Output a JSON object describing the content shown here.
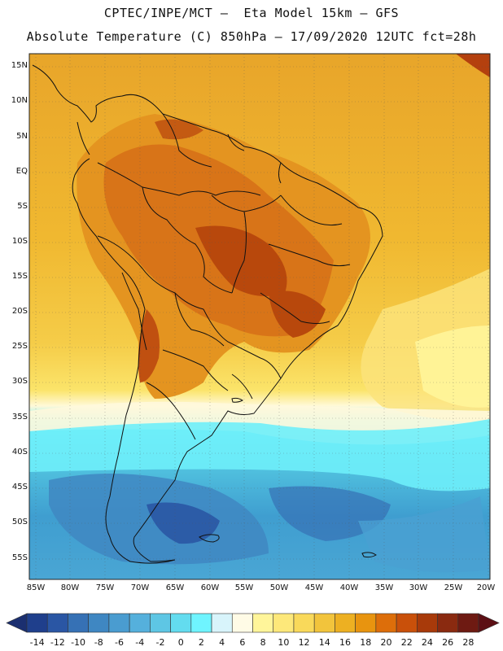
{
  "title_line1": "CPTEC/INPE/MCT –  Eta Model 15km – GFS",
  "title_line2": "Absolute Temperature (C) 850hPa – 17/09/2020 12UTC fct=28h",
  "lat_labels": [
    "15N",
    "10N",
    "5N",
    "EQ",
    "5S",
    "10S",
    "15S",
    "20S",
    "25S",
    "30S",
    "35S",
    "40S",
    "45S",
    "50S",
    "55S"
  ],
  "lon_labels": [
    "85W",
    "80W",
    "75W",
    "70W",
    "65W",
    "60W",
    "55W",
    "50W",
    "45W",
    "40W",
    "35W",
    "30W",
    "25W",
    "20W"
  ],
  "colorbar": {
    "labels": [
      "-14",
      "-12",
      "-10",
      "-8",
      "-6",
      "-4",
      "-2",
      "0",
      "2",
      "4",
      "6",
      "8",
      "10",
      "12",
      "14",
      "16",
      "18",
      "20",
      "22",
      "24",
      "26",
      "28"
    ],
    "colors": [
      "#1f3f8c",
      "#2a56a4",
      "#3671b5",
      "#3f87c2",
      "#4a9cd0",
      "#55b0dc",
      "#5ec6e4",
      "#63dcef",
      "#6ff4ff",
      "#d8f4fb",
      "#fffbe6",
      "#fff59a",
      "#fde87a",
      "#f9d95a",
      "#f2c43c",
      "#edb022",
      "#e8940f",
      "#dd6e0a",
      "#c9500a",
      "#a83a0a",
      "#8a2a10",
      "#6e1a12"
    ],
    "arrow_left": "#1b2f70",
    "arrow_right": "#5c0f14"
  }
}
